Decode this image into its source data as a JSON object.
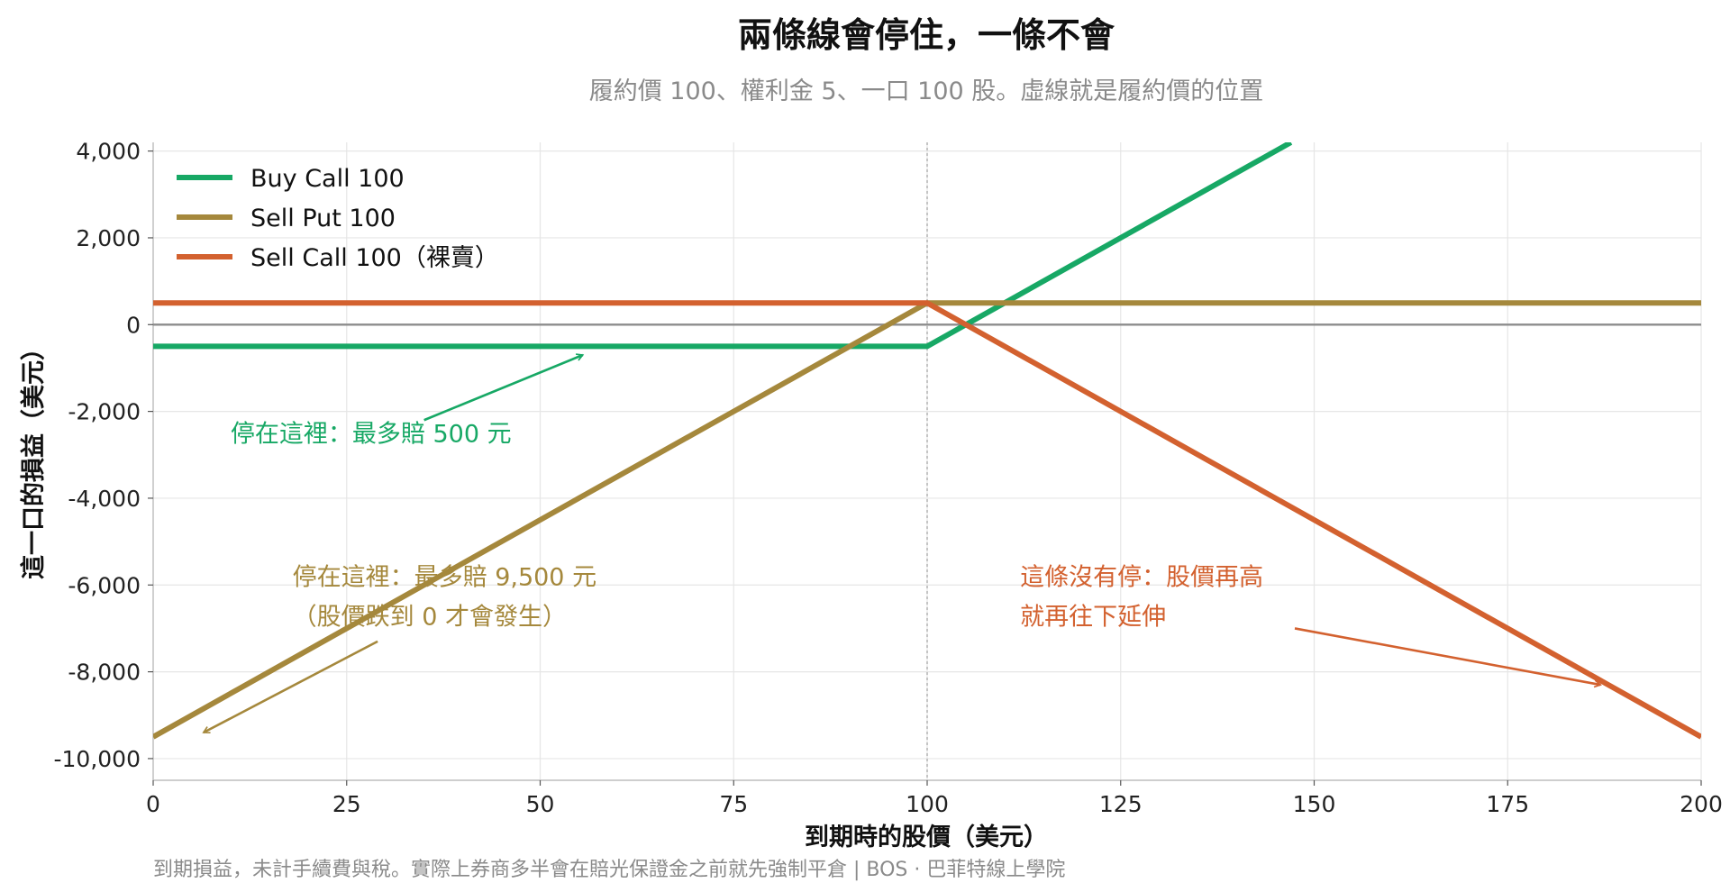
{
  "chart_data": {
    "type": "line",
    "title": "兩條線會停住，一條不會",
    "subtitle": "履約價 100、權利金 5、一口 100 股。虛線就是履約價的位置",
    "xlabel": "到期時的股價（美元）",
    "ylabel": "這一口的損益（美元）",
    "xlim": [
      0,
      200
    ],
    "ylim": [
      -10500,
      4200
    ],
    "x_ticks": [
      0,
      25,
      50,
      75,
      100,
      125,
      150,
      175,
      200
    ],
    "y_ticks": [
      4000,
      2000,
      0,
      -2000,
      -4000,
      -6000,
      -8000,
      -10000
    ],
    "y_tick_labels": [
      "4,000",
      "2,000",
      "0",
      "-2,000",
      "-4,000",
      "-6,000",
      "-8,000",
      "-10,000"
    ],
    "grid": true,
    "legend_position": "top-left",
    "strike_line_x": 100,
    "series": [
      {
        "name": "Buy Call 100",
        "color": "#17a865",
        "points": [
          [
            0,
            -500
          ],
          [
            100,
            -500
          ],
          [
            147,
            4200
          ]
        ]
      },
      {
        "name": "Sell Put 100",
        "color": "#a5883c",
        "points": [
          [
            0,
            -9500
          ],
          [
            100,
            500
          ],
          [
            200,
            500
          ]
        ]
      },
      {
        "name": "Sell Call 100（裸賣）",
        "color": "#d3612f",
        "points": [
          [
            0,
            500
          ],
          [
            100,
            500
          ],
          [
            200,
            -9500
          ]
        ]
      }
    ],
    "annotations": [
      {
        "lines": [
          "停在這裡：最多賠 500 元"
        ],
        "color": "#17a865",
        "text_at": [
          10,
          -2700
        ],
        "arrow_from": [
          35,
          -2200
        ],
        "arrow_to": [
          55.5,
          -700
        ]
      },
      {
        "lines": [
          "停在這裡：最多賠 9,500 元",
          "（股價跌到 0 才會發生）"
        ],
        "color": "#a5883c",
        "text_at": [
          18,
          -6000
        ],
        "arrow_from": [
          29,
          -7300
        ],
        "arrow_to": [
          6.5,
          -9400
        ]
      },
      {
        "lines": [
          "這條沒有停：股價再高",
          "就再往下延伸"
        ],
        "color": "#d3612f",
        "text_at": [
          112,
          -6000
        ],
        "arrow_from": [
          147.5,
          -7000
        ],
        "arrow_to": [
          187,
          -8300
        ]
      }
    ]
  },
  "footer": "到期損益，未計手續費與稅。實際上券商多半會在賠光保證金之前就先強制平倉 | BOS ·  巴菲特線上學院"
}
